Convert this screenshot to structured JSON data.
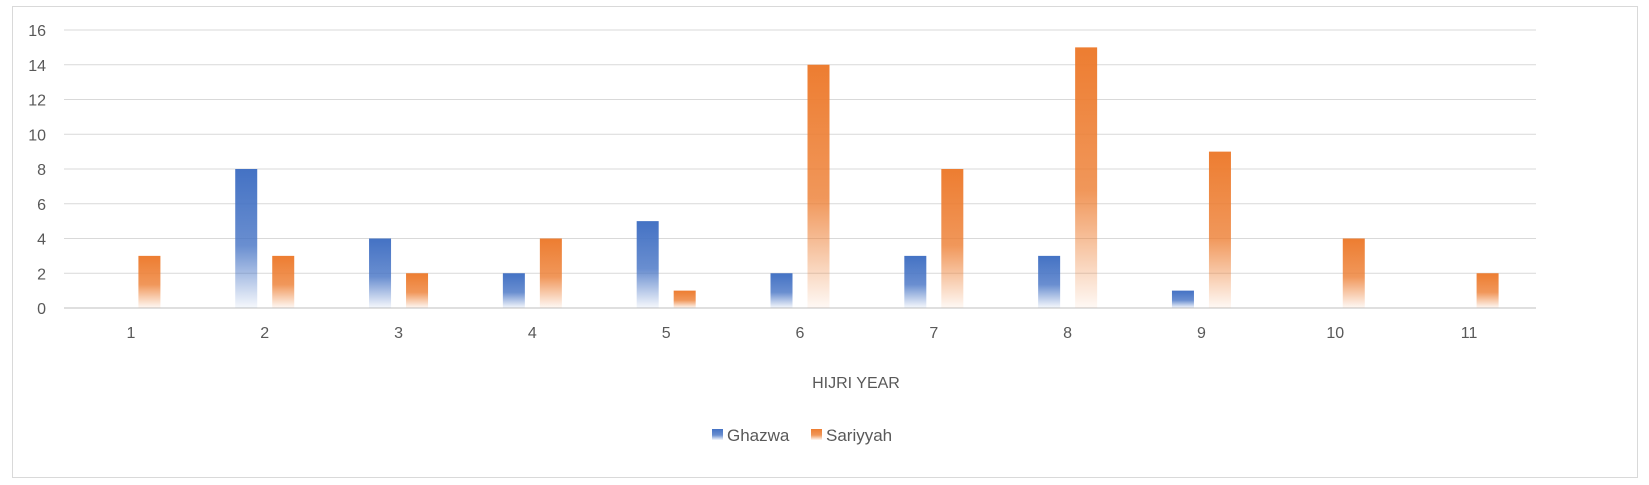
{
  "chart_data": {
    "type": "bar",
    "categories": [
      "1",
      "2",
      "3",
      "4",
      "5",
      "6",
      "7",
      "8",
      "9",
      "10",
      "11"
    ],
    "series": [
      {
        "name": "Ghazwa",
        "values": [
          null,
          8,
          4,
          2,
          5,
          2,
          3,
          3,
          1,
          null,
          null
        ]
      },
      {
        "name": "Sariyyah",
        "values": [
          3,
          3,
          2,
          4,
          1,
          14,
          8,
          15,
          9,
          4,
          2
        ]
      }
    ],
    "title": "",
    "xlabel": "HIJRI YEAR",
    "ylabel": "",
    "ylim": [
      0,
      16
    ],
    "yticks": [
      0,
      2,
      4,
      6,
      8,
      10,
      12,
      14,
      16
    ],
    "grid": true,
    "legend": "bottom",
    "colors": {
      "Ghazwa": "#4472c4",
      "Sariyyah": "#ed7d31"
    }
  }
}
